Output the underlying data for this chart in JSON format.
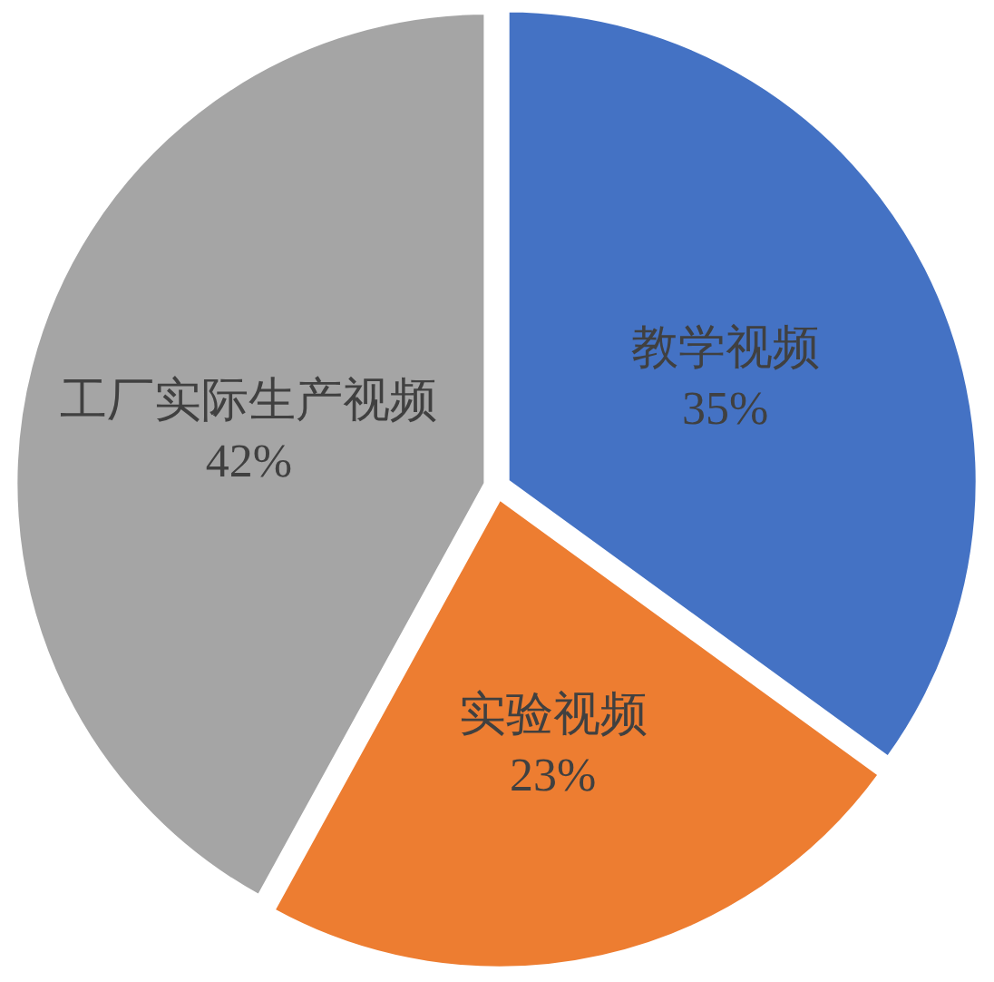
{
  "chart_data": {
    "type": "pie",
    "categories": [
      "教学视频",
      "实验视频",
      "工厂实际生产视频"
    ],
    "values": [
      35,
      23,
      42
    ],
    "colors": [
      "#4472c4",
      "#ed7d31",
      "#a5a5a5"
    ],
    "value_labels": [
      "35%",
      "23%",
      "42%"
    ]
  }
}
